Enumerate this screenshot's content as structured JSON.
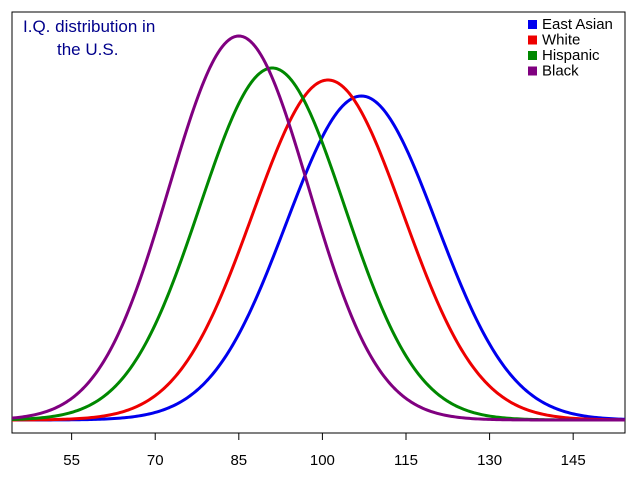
{
  "chart_data": {
    "type": "line",
    "title_lines": [
      "I.Q. distribution in",
      "the U.S."
    ],
    "xlabel": "",
    "ylabel": "",
    "xlim": [
      44.3,
      154.3
    ],
    "ylim": [
      0,
      1
    ],
    "x_ticks": [
      55,
      70,
      85,
      100,
      115,
      130,
      145
    ],
    "x_tick_labels": [
      "55",
      "70",
      "85",
      "100",
      "115",
      "130",
      "145"
    ],
    "grid": false,
    "legend_position": "top-right",
    "series": [
      {
        "name": "East Asian",
        "color": "#0000ee",
        "mean": 107,
        "sd": 13.5,
        "peak": 0.81
      },
      {
        "name": "White",
        "color": "#ee0000",
        "mean": 101,
        "sd": 13.5,
        "peak": 0.85
      },
      {
        "name": "Hispanic",
        "color": "#008800",
        "mean": 91,
        "sd": 13.0,
        "peak": 0.88
      },
      {
        "name": "Black",
        "color": "#800080",
        "mean": 85,
        "sd": 12.5,
        "peak": 0.96
      }
    ]
  }
}
